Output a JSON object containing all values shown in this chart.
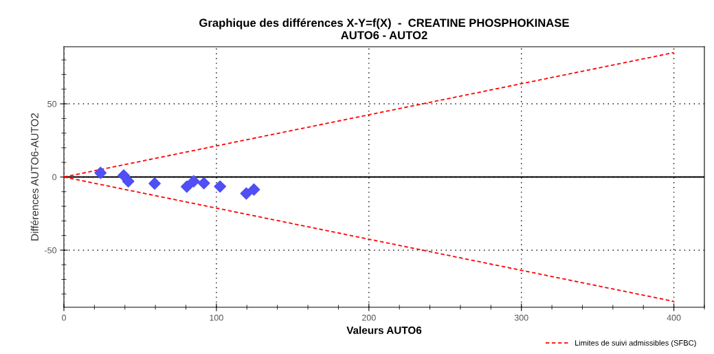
{
  "chart_data": {
    "type": "scatter",
    "title": "Graphique des différences X-Y=f(X)  -  CREATINE PHOSPHOKINASE\nAUTO6 - AUTO2",
    "xlabel": "Valeurs AUTO6",
    "ylabel": "Différences AUTO6-AUTO2",
    "series": [
      {
        "color": "#4f4ff5",
        "marker": "diamond",
        "x": [
          24,
          39.2,
          42.2,
          59.5,
          80.6,
          85.1,
          91.8,
          102.4,
          119.6,
          124.6
        ],
        "values": [
          2.8,
          1.1,
          -2.9,
          -4.5,
          -6.6,
          -2.9,
          -4.2,
          -6.5,
          -11.3,
          -8.6
        ]
      },
      {
        "type": "line",
        "name": "Limites de suivi admissibles (SFBC)",
        "color": "#ff0000",
        "line_style": "dashed",
        "marker": "none",
        "x": [
          0,
          400
        ],
        "values": [
          0,
          85
        ]
      },
      {
        "type": "line",
        "color": "#ff0000",
        "line_style": "dashed",
        "marker": "none",
        "x": [
          0,
          400
        ],
        "values": [
          0,
          -85
        ]
      }
    ],
    "ref_lines": [
      {
        "axis": "y",
        "value": 0,
        "color": "#000000",
        "line_style": "solid"
      }
    ],
    "xlim": [
      0,
      420
    ],
    "ylim": [
      -89,
      89
    ],
    "xticks": [
      0,
      100,
      200,
      300,
      400
    ],
    "yticks": [
      -50,
      0,
      50
    ],
    "grid": true,
    "legend": "bottom right"
  }
}
